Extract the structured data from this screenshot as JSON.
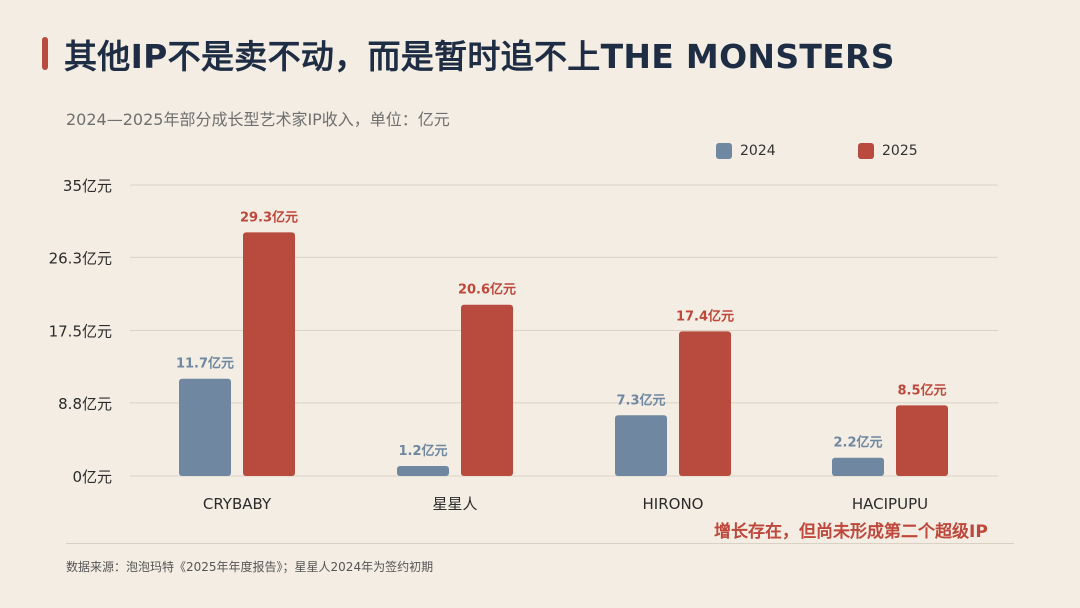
{
  "header": {
    "title": "其他IP不是卖不动，而是暂时追不上THE MONSTERS",
    "subtitle": "2024—2025年部分成长型艺术家IP收入，单位：亿元"
  },
  "colors": {
    "accent": "#b84a3e",
    "series_2024": "#6f87a0",
    "series_2025": "#b84a3e",
    "label_2024": "#6f87a0",
    "label_2025": "#c0473b"
  },
  "chart_data": {
    "type": "bar",
    "categories": [
      "CRYBABY",
      "星星人",
      "HIRONO",
      "HACIPUPU"
    ],
    "series": [
      {
        "name": "2024",
        "values": [
          11.7,
          1.2,
          7.3,
          2.2
        ],
        "labels": [
          "11.7亿元",
          "1.2亿元",
          "7.3亿元",
          "2.2亿元"
        ]
      },
      {
        "name": "2025",
        "values": [
          29.3,
          20.6,
          17.4,
          8.5
        ],
        "labels": [
          "29.3亿元",
          "20.6亿元",
          "17.4亿元",
          "8.5亿元"
        ]
      }
    ],
    "ylim": [
      0,
      35
    ],
    "yticks": [
      0,
      8.8,
      17.5,
      26.3,
      35
    ],
    "ytick_labels": [
      "0亿元",
      "8.8亿元",
      "17.5亿元",
      "26.3亿元",
      "35亿元"
    ],
    "grid": true,
    "legend_position": "top-right"
  },
  "annotation": "增长存在，但尚未形成第二个超级IP",
  "footer": {
    "source": "数据来源：泡泡玛特《2025年年度报告》；星星人2024年为签约初期"
  }
}
